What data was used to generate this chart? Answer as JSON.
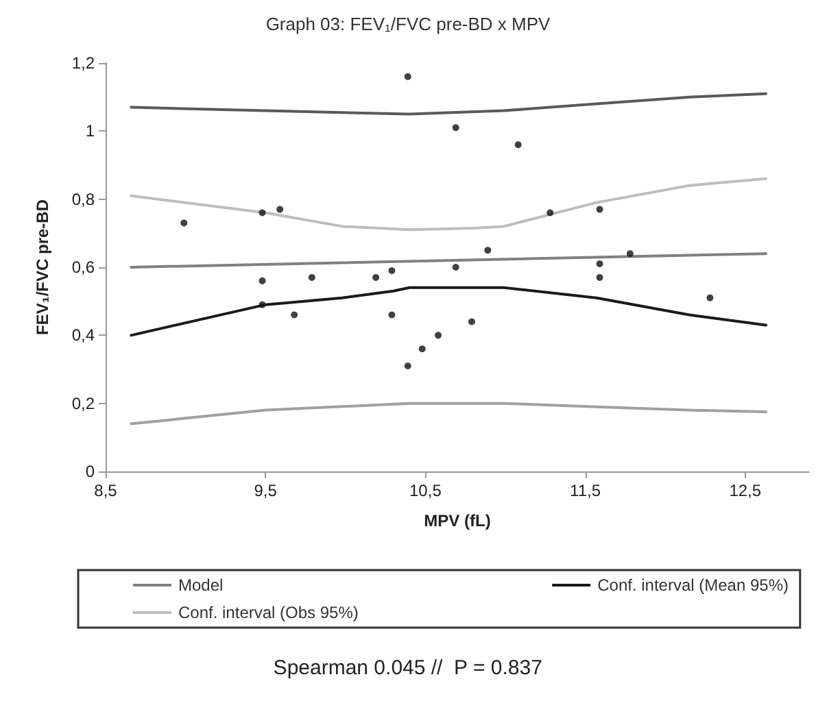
{
  "chart_data": {
    "type": "scatter",
    "title": "Graph 03: FEV₁/FVC pre-BD x MPV",
    "xlabel": "MPV (fL)",
    "ylabel": "FEV₁/FVC pre-BD",
    "annotations": [
      "Spearman 0.045 //  P = 0.837"
    ],
    "xlim": [
      8.5,
      12.9
    ],
    "xticks": [
      {
        "value": 8.5,
        "label": "8,5"
      },
      {
        "value": 9.5,
        "label": "9,5"
      },
      {
        "value": 10.5,
        "label": "10,5"
      },
      {
        "value": 11.5,
        "label": "11,5"
      },
      {
        "value": 12.5,
        "label": "12,5"
      }
    ],
    "ylim": [
      0,
      1.2
    ],
    "yticks": [
      0,
      {
        "value": 0.2,
        "label": "0,2"
      },
      {
        "value": 0.4,
        "label": "0,4"
      },
      {
        "value": 0.6,
        "label": "0,6"
      },
      {
        "value": 0.8,
        "label": "0,8"
      },
      1,
      {
        "value": 1.2,
        "label": "1,2"
      }
    ],
    "grid": false,
    "legend": "bottom",
    "marker": "circle",
    "series": [
      {
        "color": "#111111",
        "x": [
          8.99,
          9.48,
          9.59,
          9.48,
          9.48,
          9.68,
          9.79,
          10.19,
          10.29,
          10.29,
          10.39,
          10.39,
          10.48,
          10.58,
          10.69,
          10.69,
          10.79,
          10.89,
          11.08,
          11.28,
          11.59,
          11.59,
          11.59,
          11.78,
          12.28
        ],
        "values": [
          0.73,
          0.76,
          0.77,
          0.56,
          0.49,
          0.46,
          0.57,
          0.57,
          0.59,
          0.46,
          1.16,
          0.31,
          0.36,
          0.4,
          1.01,
          0.6,
          0.44,
          0.65,
          0.96,
          0.76,
          0.77,
          0.61,
          0.57,
          0.64,
          0.51
        ]
      },
      {
        "type": "line",
        "name": "Model",
        "color": "#808080",
        "marker": "none",
        "x": [
          8.66,
          12.63
        ],
        "values": [
          0.6,
          0.64
        ]
      },
      {
        "type": "line",
        "name": "Conf. interval (Mean 95%)",
        "color": "#1a1a1a",
        "marker": "none",
        "x": [
          8.66,
          9.5,
          9.98,
          10.3,
          10.4,
          10.99,
          11.57,
          12.15,
          12.63
        ],
        "values": [
          0.4,
          0.49,
          0.51,
          0.53,
          0.54,
          0.54,
          0.51,
          0.46,
          0.43
        ]
      },
      {
        "type": "line",
        "color": "#5a5a5a",
        "marker": "none",
        "x": [
          8.66,
          9.5,
          10.4,
          10.99,
          11.57,
          12.15,
          12.63
        ],
        "values": [
          1.07,
          1.06,
          1.05,
          1.06,
          1.08,
          1.1,
          1.11
        ]
      },
      {
        "type": "line",
        "name": "Conf. interval (Obs 95%)",
        "color": "#bdbdbd",
        "marker": "none",
        "x": [
          8.66,
          9.5,
          9.98,
          10.4,
          10.8,
          10.99,
          11.57,
          12.15,
          12.63
        ],
        "values": [
          0.81,
          0.76,
          0.72,
          0.71,
          0.715,
          0.72,
          0.79,
          0.84,
          0.86
        ]
      },
      {
        "type": "line",
        "color": "#a0a0a0",
        "marker": "none",
        "x": [
          8.66,
          9.5,
          10.4,
          10.99,
          11.57,
          12.15,
          12.63
        ],
        "values": [
          0.14,
          0.18,
          0.2,
          0.2,
          0.19,
          0.18,
          0.175
        ]
      }
    ]
  }
}
